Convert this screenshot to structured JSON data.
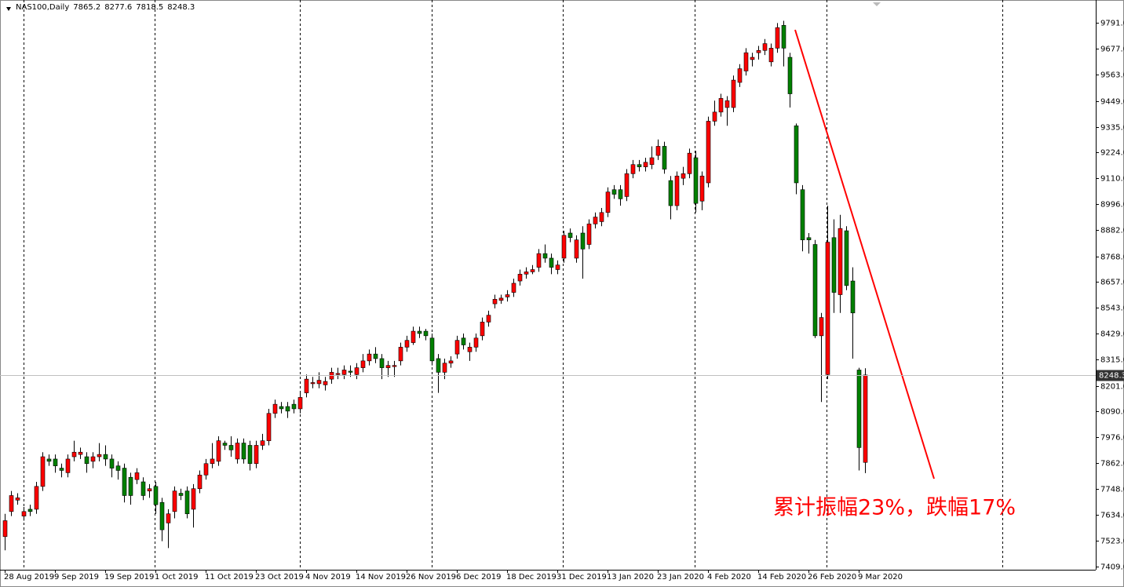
{
  "chart_data": {
    "type": "candlestick",
    "title": "NAS100,Daily",
    "annotation": "累计振幅23%，跌幅17%",
    "up_color": "#ff0000",
    "down_color": "#008000",
    "categories": [
      "28 Aug 2019",
      null,
      null,
      null,
      null,
      null,
      null,
      null,
      "9 Sep 2019",
      null,
      null,
      null,
      null,
      null,
      null,
      null,
      "19 Sep 2019",
      null,
      null,
      null,
      null,
      null,
      null,
      null,
      "1 Oct 2019",
      null,
      null,
      null,
      null,
      null,
      null,
      null,
      "11 Oct 2019",
      null,
      null,
      null,
      null,
      null,
      null,
      null,
      "23 Oct 2019",
      null,
      null,
      null,
      null,
      null,
      null,
      null,
      "4 Nov 2019",
      null,
      null,
      null,
      null,
      null,
      null,
      null,
      "14 Nov 2019",
      null,
      null,
      null,
      null,
      null,
      null,
      null,
      "26 Nov 2019",
      null,
      null,
      null,
      null,
      null,
      null,
      null,
      "6 Dec 2019",
      null,
      null,
      null,
      null,
      null,
      null,
      null,
      "18 Dec 2019",
      null,
      null,
      null,
      null,
      null,
      null,
      null,
      "31 Dec 2019",
      null,
      null,
      null,
      null,
      null,
      null,
      null,
      "13 Jan 2020",
      null,
      null,
      null,
      null,
      null,
      null,
      null,
      "23 Jan 2020",
      null,
      null,
      null,
      null,
      null,
      null,
      null,
      "4 Feb 2020",
      null,
      null,
      null,
      null,
      null,
      null,
      null,
      "14 Feb 2020",
      null,
      null,
      null,
      null,
      null,
      null,
      null,
      "26 Feb 2020",
      null,
      null,
      null,
      null,
      null,
      null,
      null,
      "9 Mar 2020",
      null
    ],
    "open": [
      7540,
      7650,
      7700,
      7630,
      7660,
      7660,
      7760,
      7880,
      7880,
      7840,
      7820,
      7890,
      7900,
      7890,
      7870,
      7890,
      7900,
      7880,
      7850,
      7840,
      7800,
      7790,
      7780,
      7740,
      7760,
      7690,
      7600,
      7650,
      7730,
      7740,
      7660,
      7750,
      7810,
      7860,
      7870,
      7950,
      7940,
      7880,
      7950,
      7940,
      7860,
      7940,
      7960,
      8080,
      8110,
      8110,
      8120,
      8100,
      8170,
      8210,
      8210,
      8205,
      8230,
      8250,
      8250,
      8265,
      8250,
      8280,
      8310,
      8340,
      8320,
      8280,
      8285,
      8310,
      8370,
      8390,
      8440,
      8440,
      8410,
      8320,
      8260,
      8300,
      8340,
      8410,
      8350,
      8370,
      8420,
      8480,
      8560,
      8575,
      8590,
      8610,
      8660,
      8690,
      8700,
      8720,
      8780,
      8760,
      8710,
      8760,
      8870,
      8760,
      8870,
      8820,
      8910,
      8920,
      8960,
      9060,
      9060,
      9030,
      9130,
      9170,
      9160,
      9170,
      9210,
      9250,
      9100,
      8990,
      9110,
      9130,
      9200,
      9010,
      9090,
      9360,
      9400,
      9420,
      9420,
      9530,
      9580,
      9630,
      9660,
      9670,
      9620,
      9680,
      9780,
      9640,
      9340,
      9060,
      8850,
      8820,
      8420,
      8250,
      8850,
      8600,
      8880,
      8660,
      8270,
      7865.2
    ],
    "high": [
      7640,
      7740,
      7730,
      7670,
      7680,
      7780,
      7910,
      7900,
      7900,
      7860,
      7900,
      7960,
      7930,
      7910,
      7910,
      7950,
      7940,
      7900,
      7870,
      7860,
      7820,
      7840,
      7800,
      7770,
      7780,
      7710,
      7660,
      7760,
      7750,
      7760,
      7770,
      7830,
      7880,
      7950,
      7980,
      7960,
      7980,
      7970,
      7970,
      7960,
      7960,
      7990,
      8100,
      8140,
      8130,
      8130,
      8140,
      8170,
      8250,
      8240,
      8260,
      8240,
      8280,
      8280,
      8290,
      8290,
      8300,
      8340,
      8360,
      8370,
      8340,
      8310,
      8310,
      8390,
      8420,
      8460,
      8460,
      8450,
      8430,
      8340,
      8320,
      8330,
      8420,
      8430,
      8390,
      8430,
      8500,
      8530,
      8600,
      8600,
      8620,
      8670,
      8710,
      8720,
      8730,
      8800,
      8820,
      8780,
      8750,
      8880,
      8890,
      8860,
      8900,
      8930,
      8960,
      8980,
      9070,
      9080,
      9080,
      9150,
      9190,
      9190,
      9200,
      9250,
      9280,
      9270,
      9120,
      9140,
      9160,
      9240,
      9230,
      9140,
      9380,
      9450,
      9480,
      9470,
      9560,
      9610,
      9680,
      9660,
      9690,
      9720,
      9700,
      9790,
      9800,
      9660,
      9350,
      9080,
      8870,
      8840,
      8520,
      8990,
      8930,
      8950,
      8900,
      8720,
      8280,
      8277.6
    ],
    "low": [
      7480,
      7630,
      7680,
      7610,
      7630,
      7640,
      7740,
      7850,
      7820,
      7800,
      7800,
      7870,
      7880,
      7820,
      7840,
      7870,
      7850,
      7800,
      7790,
      7690,
      7680,
      7770,
      7700,
      7710,
      7640,
      7520,
      7490,
      7620,
      7700,
      7620,
      7580,
      7730,
      7790,
      7840,
      7850,
      7920,
      7890,
      7860,
      7860,
      7830,
      7840,
      7920,
      7940,
      8060,
      8080,
      8060,
      8080,
      8080,
      8150,
      8190,
      8190,
      8180,
      8210,
      8230,
      8230,
      8240,
      8230,
      8260,
      8290,
      8300,
      8230,
      8240,
      8240,
      8290,
      8350,
      8380,
      8410,
      8400,
      8290,
      8170,
      8230,
      8280,
      8320,
      8360,
      8310,
      8350,
      8400,
      8460,
      8540,
      8560,
      8570,
      8590,
      8640,
      8670,
      8690,
      8700,
      8740,
      8690,
      8690,
      8740,
      8830,
      8740,
      8670,
      8800,
      8890,
      8900,
      8940,
      9020,
      8990,
      9010,
      9110,
      9140,
      9140,
      9150,
      9190,
      9130,
      8930,
      8970,
      9080,
      9110,
      8960,
      8970,
      9070,
      9340,
      9380,
      9340,
      9400,
      9510,
      9560,
      9600,
      9630,
      9650,
      9600,
      9660,
      9600,
      9420,
      9040,
      8790,
      8780,
      8410,
      8130,
      8230,
      8520,
      8520,
      8620,
      8320,
      7830,
      7818.5
    ],
    "close": [
      7610,
      7720,
      7710,
      7650,
      7650,
      7760,
      7890,
      7870,
      7850,
      7830,
      7880,
      7910,
      7910,
      7860,
      7890,
      7900,
      7880,
      7840,
      7830,
      7720,
      7720,
      7820,
      7720,
      7750,
      7680,
      7570,
      7640,
      7740,
      7720,
      7640,
      7750,
      7810,
      7860,
      7880,
      7960,
      7940,
      7920,
      7950,
      7880,
      7860,
      7940,
      7960,
      8080,
      8120,
      8100,
      8090,
      8100,
      8150,
      8230,
      8215,
      8225,
      8220,
      8260,
      8255,
      8270,
      8260,
      8280,
      8310,
      8340,
      8320,
      8280,
      8290,
      8290,
      8370,
      8400,
      8440,
      8430,
      8420,
      8310,
      8260,
      8300,
      8310,
      8400,
      8380,
      8370,
      8410,
      8480,
      8510,
      8580,
      8585,
      8600,
      8650,
      8690,
      8700,
      8710,
      8780,
      8760,
      8720,
      8730,
      8860,
      8850,
      8840,
      8800,
      8910,
      8940,
      8960,
      9050,
      9040,
      9020,
      9130,
      9170,
      9160,
      9180,
      9200,
      9250,
      9150,
      8990,
      9120,
      9130,
      9220,
      9000,
      9120,
      9360,
      9400,
      9460,
      9450,
      9540,
      9590,
      9660,
      9640,
      9670,
      9700,
      9680,
      9770,
      9680,
      9480,
      9090,
      8840,
      8840,
      8420,
      8500,
      8830,
      8610,
      8890,
      8640,
      8520,
      7930,
      8248.3
    ],
    "ylim": [
      7395,
      9891
    ],
    "yticks": [
      {
        "value": 9791,
        "label": "9791.0"
      },
      {
        "value": 9677,
        "label": "9677.0"
      },
      {
        "value": 9563,
        "label": "9563.0"
      },
      {
        "value": 9449,
        "label": "9449.0"
      },
      {
        "value": 9335,
        "label": "9335.0"
      },
      {
        "value": 9224,
        "label": "9224.0"
      },
      {
        "value": 9110,
        "label": "9110.0"
      },
      {
        "value": 8996,
        "label": "8996.0"
      },
      {
        "value": 8882,
        "label": "8882.0"
      },
      {
        "value": 8768,
        "label": "8768.0"
      },
      {
        "value": 8657,
        "label": "8657.0"
      },
      {
        "value": 8543,
        "label": "8543.0"
      },
      {
        "value": 8429,
        "label": "8429.0"
      },
      {
        "value": 8315,
        "label": "8315.0"
      },
      {
        "value": 8201,
        "label": "8201.0"
      },
      {
        "value": 8090,
        "label": "8090.0"
      },
      {
        "value": 7976,
        "label": "7976.0"
      },
      {
        "value": 7862,
        "label": "7862.0"
      },
      {
        "value": 7748,
        "label": "7748.0"
      },
      {
        "value": 7634,
        "label": "7634.0"
      },
      {
        "value": 7523,
        "label": "7523.0"
      },
      {
        "value": 7409,
        "label": "7409.0"
      }
    ]
  }
}
